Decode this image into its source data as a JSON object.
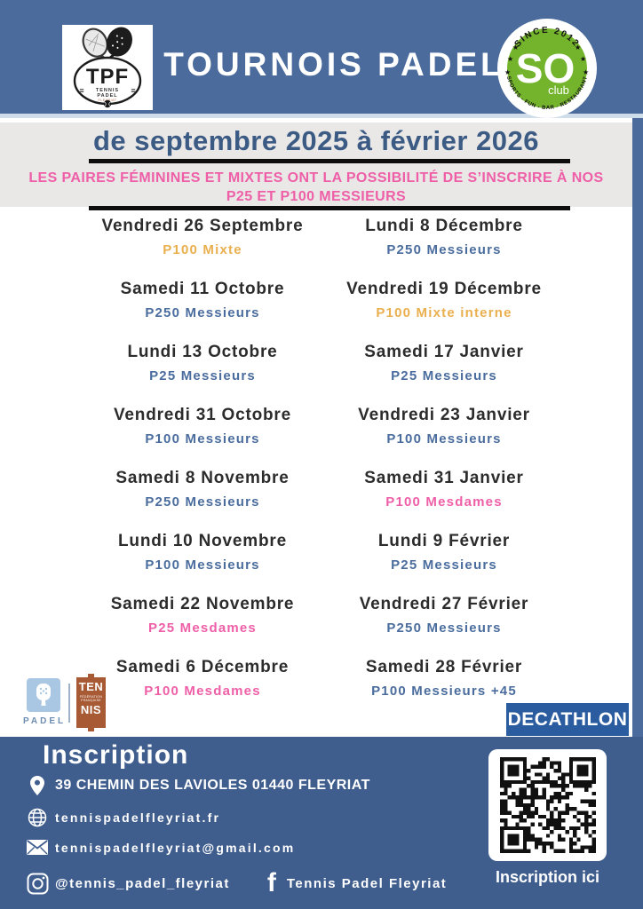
{
  "header": {
    "title": "TOURNOIS PADEL",
    "tpf_logo": {
      "abbr": "TPF",
      "line1": "TENNIS",
      "line2": "PADEL",
      "line3": "FLEYRIAT"
    },
    "so_logo": {
      "arc_top": "SINCE 2012",
      "main": "SO",
      "smiley": ":-)",
      "sub": "club",
      "arc_bottom": "SPORTS - FUN - BAR - RESTAURANT"
    }
  },
  "season": {
    "title": "de septembre 2025 à février 2026"
  },
  "notice": {
    "line1": "LES PAIRES FÉMININES ET MIXTES ONT LA POSSIBILITÉ DE S’INSCRIRE À NOS",
    "line2": "P25 ET P100 MESSIEURS"
  },
  "palette": {
    "messieurs": "#4a6d9e",
    "mesdames": "#ee5fa8",
    "mixte": "#eaaf4e"
  },
  "schedule": {
    "columns": [
      {
        "events": [
          {
            "date": "Vendredi 26 Septembre",
            "category": "P100 Mixte",
            "type": "mixte"
          },
          {
            "date": "Samedi 11 Octobre",
            "category": "P250 Messieurs",
            "type": "messieurs"
          },
          {
            "date": "Lundi 13 Octobre",
            "category": "P25 Messieurs",
            "type": "messieurs"
          },
          {
            "date": "Vendredi 31 Octobre",
            "category": "P100 Messieurs",
            "type": "messieurs"
          },
          {
            "date": "Samedi 8 Novembre",
            "category": "P250 Messieurs",
            "type": "messieurs"
          },
          {
            "date": "Lundi 10 Novembre",
            "category": "P100 Messieurs",
            "type": "messieurs"
          },
          {
            "date": "Samedi 22 Novembre",
            "category": "P25 Mesdames",
            "type": "mesdames"
          },
          {
            "date": "Samedi 6 Décembre",
            "category": "P100 Mesdames",
            "type": "mesdames"
          }
        ]
      },
      {
        "events": [
          {
            "date": "Lundi 8 Décembre",
            "category": "P250 Messieurs",
            "type": "messieurs"
          },
          {
            "date": "Vendredi 19 Décembre",
            "category": "P100 Mixte interne",
            "type": "mixte"
          },
          {
            "date": "Samedi 17 Janvier",
            "category": "P25 Messieurs",
            "type": "messieurs"
          },
          {
            "date": "Vendredi 23 Janvier",
            "category": "P100 Messieurs",
            "type": "messieurs"
          },
          {
            "date": "Samedi 31 Janvier",
            "category": "P100 Mesdames",
            "type": "mesdames"
          },
          {
            "date": "Lundi 9 Février",
            "category": "P25 Messieurs",
            "type": "messieurs"
          },
          {
            "date": "Vendredi 27 Février",
            "category": "P250 Messieurs",
            "type": "messieurs"
          },
          {
            "date": "Samedi 28 Février",
            "category": "P100 Messieurs +45",
            "type": "messieurs"
          }
        ]
      }
    ]
  },
  "partners": {
    "padel_label": "PADEL",
    "fft_top": "TEN",
    "fft_small": "FÉDÉRATION FRANÇAISE",
    "fft_bottom": "NIS",
    "decathlon": "DECATHLON"
  },
  "footer": {
    "heading": "Inscription",
    "address": "39 CHEMIN DES LAVIOLES 01440 FLEYRIAT",
    "website": "tennispadelfleyriat.fr",
    "email": "tennispadelfleyriat@gmail.com",
    "instagram": "@tennis_padel_fleyriat",
    "facebook": "Tennis Padel Fleyriat",
    "qr_caption": "Inscription ici"
  }
}
